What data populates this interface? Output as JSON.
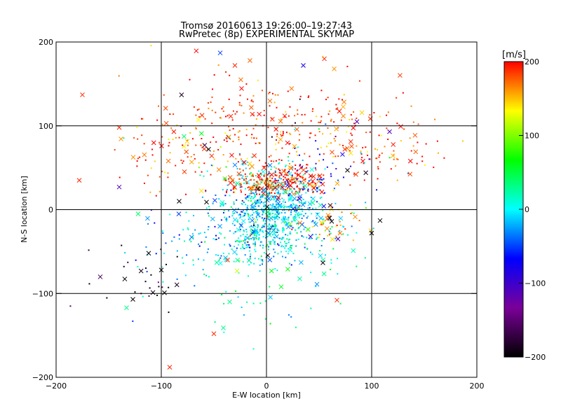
{
  "chart_data": {
    "type": "scatter",
    "title": "Tromsø 20160613 19:26:00–19:27:43",
    "subtitle": "RwPretec (8p) EXPERIMENTAL SKYMAP",
    "xlabel": "E-W location [km]",
    "ylabel": "N-S location [km]",
    "xlim": [
      -200,
      200
    ],
    "ylim": [
      -200,
      200
    ],
    "x_ticks": [
      -200,
      -100,
      0,
      100,
      200
    ],
    "y_ticks": [
      -200,
      -100,
      0,
      100,
      200
    ],
    "x_tick_labels": [
      "−200",
      "−100",
      "0",
      "100",
      "200"
    ],
    "y_tick_labels": [
      "−200",
      "−100",
      "0",
      "100",
      "200"
    ],
    "grid_lines_x": [
      -100,
      0,
      100
    ],
    "grid_lines_y": [
      -100,
      0,
      100
    ],
    "colorbar": {
      "label": "[m/s]",
      "range": [
        -200,
        200
      ],
      "ticks": [
        -200,
        -100,
        0,
        100,
        200
      ],
      "tick_labels": [
        "−200",
        "−100",
        "0",
        "100",
        "200"
      ],
      "colormap": [
        "#000000",
        "#7a0099",
        "#0000ff",
        "#00ffff",
        "#00ff00",
        "#ffff00",
        "#ff0000"
      ]
    },
    "marker_note": "points are small dots and x-crosses, colored by velocity [m/s]",
    "clusters": [
      {
        "center": [
          5,
          0
        ],
        "spread": [
          25,
          25
        ],
        "count": 700,
        "velocity": -10
      },
      {
        "center": [
          20,
          35
        ],
        "spread": [
          18,
          10
        ],
        "count": 180,
        "velocity": 195
      },
      {
        "center": [
          -15,
          30
        ],
        "spread": [
          15,
          8
        ],
        "count": 90,
        "velocity": 190
      },
      {
        "center": [
          20,
          100
        ],
        "spread": [
          55,
          30
        ],
        "count": 260,
        "velocity": 185
      },
      {
        "center": [
          -80,
          75
        ],
        "spread": [
          35,
          25
        ],
        "count": 110,
        "velocity": 180
      },
      {
        "center": [
          120,
          70
        ],
        "spread": [
          25,
          20
        ],
        "count": 70,
        "velocity": 180
      },
      {
        "center": [
          5,
          -40
        ],
        "spread": [
          30,
          15
        ],
        "count": 120,
        "velocity": 10
      },
      {
        "center": [
          -60,
          -40
        ],
        "spread": [
          30,
          25
        ],
        "count": 90,
        "velocity": -30
      },
      {
        "center": [
          60,
          -20
        ],
        "spread": [
          15,
          12
        ],
        "count": 40,
        "velocity": 150
      },
      {
        "center": [
          -120,
          -85
        ],
        "spread": [
          20,
          20
        ],
        "count": 30,
        "velocity": -190
      },
      {
        "center": [
          10,
          -60
        ],
        "spread": [
          50,
          40
        ],
        "count": 90,
        "velocity": 20
      },
      {
        "center": [
          50,
          40
        ],
        "spread": [
          20,
          20
        ],
        "count": 50,
        "velocity": -80
      }
    ],
    "highlight_points": [
      {
        "x": -175,
        "y": 137,
        "v": 190,
        "m": "x"
      },
      {
        "x": -44,
        "y": 187,
        "v": -50,
        "m": "x"
      },
      {
        "x": -30,
        "y": 172,
        "v": 190,
        "m": "x"
      },
      {
        "x": 35,
        "y": 172,
        "v": -80,
        "m": "x"
      },
      {
        "x": 55,
        "y": 180,
        "v": 190,
        "m": "x"
      },
      {
        "x": -178,
        "y": 35,
        "v": 190,
        "m": "x"
      },
      {
        "x": -140,
        "y": 27,
        "v": -110,
        "m": "x"
      },
      {
        "x": 117,
        "y": 93,
        "v": -110,
        "m": "x"
      },
      {
        "x": -55,
        "y": 72,
        "v": -200,
        "m": "x"
      },
      {
        "x": -112,
        "y": -52,
        "v": -200,
        "m": "x"
      },
      {
        "x": -100,
        "y": -72,
        "v": -200,
        "m": "x"
      },
      {
        "x": -127,
        "y": -107,
        "v": -200,
        "m": "x"
      },
      {
        "x": -133,
        "y": -117,
        "v": 30,
        "m": "x"
      },
      {
        "x": 108,
        "y": -13,
        "v": -200,
        "m": "x"
      },
      {
        "x": 100,
        "y": -28,
        "v": -200,
        "m": "x"
      },
      {
        "x": 77,
        "y": 47,
        "v": -200,
        "m": "x"
      },
      {
        "x": 60,
        "y": -10,
        "v": -200,
        "m": "x"
      },
      {
        "x": 62,
        "y": -14,
        "v": -200,
        "m": "x"
      },
      {
        "x": 67,
        "y": -108,
        "v": 190,
        "m": "x"
      },
      {
        "x": -92,
        "y": -188,
        "v": 190,
        "m": "x"
      },
      {
        "x": -50,
        "y": -148,
        "v": 190,
        "m": "x"
      },
      {
        "x": -35,
        "y": -110,
        "v": 30,
        "m": "x"
      },
      {
        "x": -41,
        "y": -141,
        "v": 30,
        "m": "x"
      },
      {
        "x": 48,
        "y": -89,
        "v": -30,
        "m": "x"
      },
      {
        "x": 86,
        "y": 105,
        "v": -110,
        "m": "x"
      },
      {
        "x": -140,
        "y": 98,
        "v": 190,
        "m": "x"
      },
      {
        "x": -122,
        "y": -5,
        "v": 40,
        "m": "x"
      },
      {
        "x": -37,
        "y": -60,
        "v": 190,
        "m": "x"
      },
      {
        "x": 70,
        "y": -28,
        "v": 170,
        "m": "x"
      },
      {
        "x": 68,
        "y": -35,
        "v": -110,
        "m": "x"
      },
      {
        "x": -57,
        "y": 9,
        "v": -200,
        "m": "x"
      },
      {
        "x": -83,
        "y": 10,
        "v": -200,
        "m": "x"
      },
      {
        "x": -8,
        "y": 25,
        "v": -200,
        "m": "x"
      },
      {
        "x": -28,
        "y": -73,
        "v": 120,
        "m": "x"
      },
      {
        "x": 85,
        "y": 42,
        "v": 190,
        "m": "x"
      }
    ]
  }
}
